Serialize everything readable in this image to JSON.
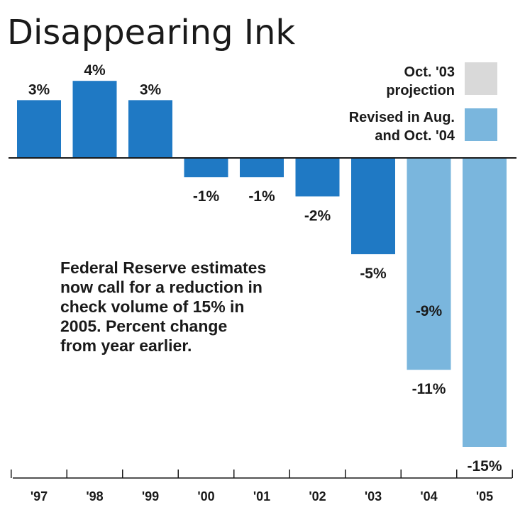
{
  "chart_data": {
    "type": "bar",
    "title": "Disappearing Ink",
    "categories": [
      "'97",
      "'98",
      "'99",
      "'00",
      "'01",
      "'02",
      "'03",
      "'04",
      "'05"
    ],
    "series": [
      {
        "name": "",
        "values": [
          3,
          4,
          3,
          -1,
          -1,
          -2,
          -5,
          null,
          null
        ],
        "color": "#1f79c4"
      },
      {
        "name": "Oct. '03 projection",
        "values": [
          null,
          null,
          null,
          null,
          null,
          null,
          null,
          -9,
          null
        ],
        "color": "#d9d9d9"
      },
      {
        "name": "Revised in Aug. and Oct. '04",
        "values": [
          null,
          null,
          null,
          null,
          null,
          null,
          null,
          -11,
          -15
        ],
        "color": "#7ab6dd"
      }
    ],
    "value_labels": [
      "3%",
      "4%",
      "3%",
      "-1%",
      "-1%",
      "-2%",
      "-5%",
      "-11%",
      "-15%"
    ],
    "projection_label": "-9%",
    "legend": [
      {
        "lines": [
          "Oct. '03",
          "projection"
        ],
        "color": "#d9d9d9"
      },
      {
        "lines": [
          "Revised in Aug.",
          "and Oct. '04"
        ],
        "color": "#7ab6dd"
      }
    ],
    "annotation": [
      "Federal Reserve estimates",
      "now call for a reduction in",
      "check volume of 15% in",
      "2005. Percent change",
      "from year earlier."
    ],
    "unit": "%",
    "ylim": [
      -15,
      4
    ],
    "xlabel": "",
    "ylabel": "",
    "legend_placement": "top-right",
    "grid": false
  }
}
